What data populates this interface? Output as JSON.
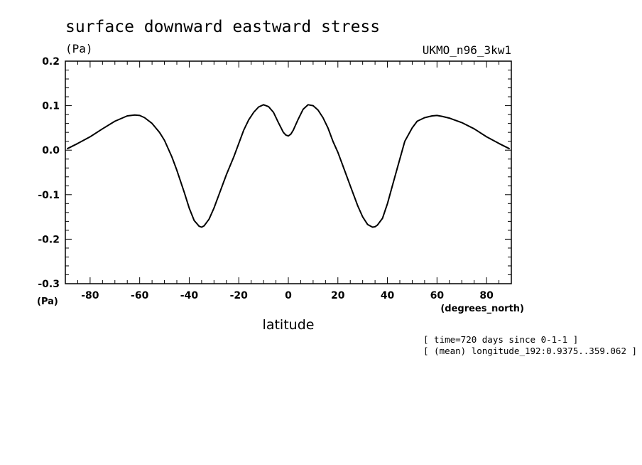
{
  "chart_data": {
    "type": "line",
    "title": "surface downward eastward stress",
    "yunits": "(Pa)",
    "xunits": "(Pa)",
    "model": "UKMO_n96_3kw1",
    "xlabel": "latitude",
    "xlabel_units": "(degrees_north)",
    "notes": [
      "[ time=720 days since 0-1-1 ]",
      "[ (mean) longitude_192:0.9375..359.062 ]"
    ],
    "xlim": [
      -90,
      90
    ],
    "ylim": [
      -0.3,
      0.2
    ],
    "xticks": [
      -80,
      -60,
      -40,
      -20,
      0,
      20,
      40,
      60,
      80
    ],
    "xtick_labels": [
      "-80",
      "-60",
      "-40",
      "-20",
      "0",
      "20",
      "40",
      "60",
      "80"
    ],
    "yticks": [
      0.2,
      0.1,
      0.0,
      -0.1,
      -0.2,
      -0.3
    ],
    "ytick_labels": [
      "0.2",
      "0.1",
      "0.0",
      "-0.1",
      "-0.2",
      "-0.3"
    ],
    "series": [
      {
        "name": "surface downward eastward stress",
        "x": [
          -89.3,
          -85,
          -80,
          -75,
          -70,
          -65,
          -62,
          -60,
          -58,
          -55,
          -52,
          -50,
          -47,
          -45,
          -42,
          -40,
          -38,
          -36,
          -35,
          -34,
          -32,
          -30,
          -28,
          -25,
          -22,
          -20,
          -18,
          -16,
          -14,
          -12,
          -10,
          -8,
          -6,
          -4,
          -2,
          -1,
          0,
          1,
          2,
          4,
          6,
          8,
          10,
          12,
          14,
          16,
          18,
          20,
          22,
          25,
          28,
          30,
          32,
          34,
          35,
          36,
          38,
          40,
          42,
          45,
          47,
          50,
          52,
          55,
          58,
          60,
          62,
          65,
          70,
          75,
          80,
          85,
          89.3
        ],
        "y": [
          0.003,
          0.015,
          0.03,
          0.048,
          0.065,
          0.077,
          0.079,
          0.078,
          0.073,
          0.06,
          0.04,
          0.022,
          -0.015,
          -0.045,
          -0.095,
          -0.13,
          -0.158,
          -0.171,
          -0.173,
          -0.17,
          -0.155,
          -0.13,
          -0.1,
          -0.055,
          -0.015,
          0.015,
          0.045,
          0.068,
          0.085,
          0.097,
          0.102,
          0.098,
          0.085,
          0.062,
          0.04,
          0.034,
          0.032,
          0.036,
          0.045,
          0.07,
          0.092,
          0.102,
          0.1,
          0.09,
          0.073,
          0.05,
          0.02,
          -0.005,
          -0.035,
          -0.08,
          -0.125,
          -0.15,
          -0.167,
          -0.173,
          -0.172,
          -0.168,
          -0.153,
          -0.12,
          -0.08,
          -0.02,
          0.02,
          0.05,
          0.065,
          0.073,
          0.077,
          0.078,
          0.076,
          0.072,
          0.062,
          0.048,
          0.03,
          0.015,
          0.003
        ]
      }
    ]
  }
}
